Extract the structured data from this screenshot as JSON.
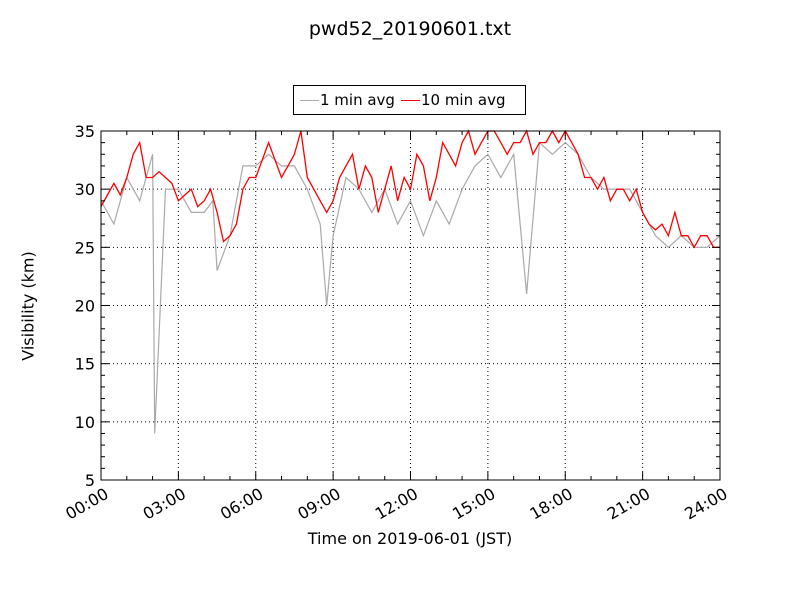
{
  "chart_data": {
    "type": "line",
    "title": "pwd52_20190601.txt",
    "xlabel": "Time on 2019-06-01 (JST)",
    "ylabel": "Visibility (km)",
    "xlim": [
      "00:00",
      "24:00"
    ],
    "ylim": [
      5,
      35
    ],
    "x_tick_labels": [
      "00:00",
      "03:00",
      "06:00",
      "09:00",
      "12:00",
      "15:00",
      "18:00",
      "21:00",
      "24:00"
    ],
    "y_tick_labels": [
      "5",
      "10",
      "15",
      "20",
      "25",
      "30",
      "35"
    ],
    "grid": true,
    "legend_position": "top-center",
    "series": [
      {
        "name": "1 min avg",
        "color": "#a9a9a9",
        "x": [
          "00:00",
          "00:30",
          "01:00",
          "01:30",
          "02:00",
          "02:05",
          "02:30",
          "03:00",
          "03:30",
          "04:00",
          "04:20",
          "04:30",
          "05:00",
          "05:30",
          "06:00",
          "06:30",
          "07:00",
          "07:30",
          "08:00",
          "08:30",
          "08:45",
          "09:00",
          "09:30",
          "10:00",
          "10:30",
          "11:00",
          "11:30",
          "12:00",
          "12:30",
          "13:00",
          "13:30",
          "14:00",
          "14:30",
          "15:00",
          "15:30",
          "16:00",
          "16:30",
          "17:00",
          "17:30",
          "18:00",
          "18:30",
          "19:00",
          "19:30",
          "20:00",
          "20:30",
          "21:00",
          "21:30",
          "22:00",
          "22:30",
          "23:00",
          "23:30",
          "24:00"
        ],
        "y": [
          29,
          27,
          31,
          29,
          33,
          9,
          30,
          30,
          28,
          28,
          29,
          23,
          26,
          32,
          32,
          33,
          32,
          32,
          30,
          27,
          20,
          26,
          31,
          30,
          28,
          30,
          27,
          29,
          26,
          29,
          27,
          30,
          32,
          33,
          31,
          33,
          21,
          34,
          33,
          34,
          33,
          31,
          30,
          30,
          30,
          28,
          26,
          25,
          26,
          25,
          25,
          26
        ]
      },
      {
        "name": "10 min avg",
        "color": "#ff0000",
        "x": [
          "00:00",
          "00:15",
          "00:30",
          "00:45",
          "01:00",
          "01:15",
          "01:30",
          "01:45",
          "02:00",
          "02:15",
          "02:30",
          "02:45",
          "03:00",
          "03:15",
          "03:30",
          "03:45",
          "04:00",
          "04:15",
          "04:30",
          "04:45",
          "05:00",
          "05:15",
          "05:30",
          "05:45",
          "06:00",
          "06:15",
          "06:30",
          "06:45",
          "07:00",
          "07:15",
          "07:30",
          "07:45",
          "08:00",
          "08:15",
          "08:30",
          "08:45",
          "09:00",
          "09:15",
          "09:30",
          "09:45",
          "10:00",
          "10:15",
          "10:30",
          "10:45",
          "11:00",
          "11:15",
          "11:30",
          "11:45",
          "12:00",
          "12:15",
          "12:30",
          "12:45",
          "13:00",
          "13:15",
          "13:30",
          "13:45",
          "14:00",
          "14:15",
          "14:30",
          "14:45",
          "15:00",
          "15:15",
          "15:30",
          "15:45",
          "16:00",
          "16:15",
          "16:30",
          "16:45",
          "17:00",
          "17:15",
          "17:30",
          "17:45",
          "18:00",
          "18:15",
          "18:30",
          "18:45",
          "19:00",
          "19:15",
          "19:30",
          "19:45",
          "20:00",
          "20:15",
          "20:30",
          "20:45",
          "21:00",
          "21:15",
          "21:30",
          "21:45",
          "22:00",
          "22:15",
          "22:30",
          "22:45",
          "23:00",
          "23:15",
          "23:30",
          "23:45",
          "24:00"
        ],
        "y": [
          28.5,
          29.5,
          30.5,
          29.5,
          31,
          33,
          34,
          31,
          31,
          31.5,
          31,
          30.5,
          29,
          29.5,
          30,
          28.5,
          29,
          30,
          28,
          25.5,
          26,
          27,
          30,
          31,
          31,
          32.5,
          34,
          32.5,
          31,
          32,
          33,
          35,
          31,
          30,
          29,
          28,
          29,
          31,
          32,
          33,
          30,
          32,
          31,
          28,
          30,
          32,
          29,
          31,
          30,
          33,
          32,
          29,
          31,
          34,
          33,
          32,
          34,
          35,
          33,
          34,
          35,
          35,
          34,
          33,
          34,
          34,
          35,
          33,
          34,
          34,
          35,
          34,
          35,
          34,
          33,
          31,
          31,
          30,
          31,
          29,
          30,
          30,
          29,
          30,
          28,
          27,
          26.5,
          27,
          26,
          28,
          26,
          26,
          25,
          26,
          26,
          25,
          25
        ]
      }
    ]
  }
}
